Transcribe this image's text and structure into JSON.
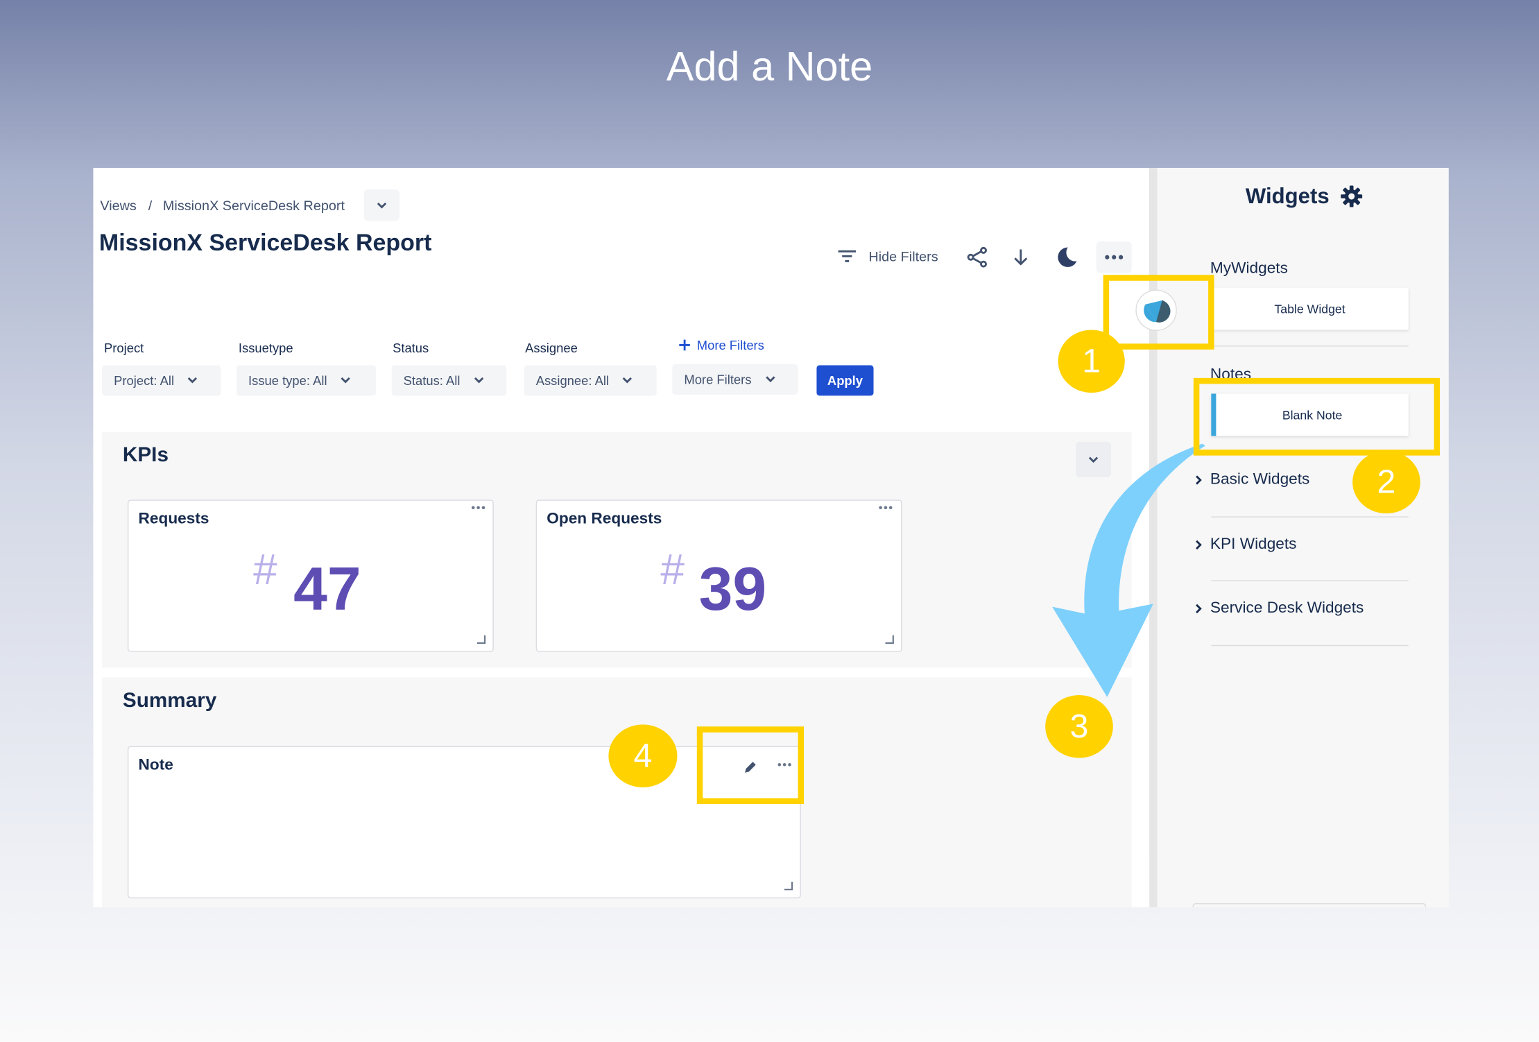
{
  "hero_title": "Add a Note",
  "breadcrumb": {
    "root": "Views",
    "separator": "/",
    "current": "MissionX ServiceDesk Report"
  },
  "page_title": "MissionX ServiceDesk Report",
  "toolbar": {
    "hide_filters": "Hide Filters"
  },
  "filters": {
    "labels": [
      "Project",
      "Issuetype",
      "Status",
      "Assignee"
    ],
    "selects": [
      "Project: All",
      "Issue type: All",
      "Status: All",
      "Assignee: All",
      "More Filters"
    ],
    "more_filters_link": "More Filters",
    "apply": "Apply"
  },
  "sections": {
    "kpis": {
      "title": "KPIs",
      "cards": [
        {
          "title": "Requests",
          "hash": "#",
          "value": "47"
        },
        {
          "title": "Open Requests",
          "hash": "#",
          "value": "39"
        }
      ]
    },
    "summary": {
      "title": "Summary",
      "note_title": "Note"
    }
  },
  "sidebar": {
    "title": "Widgets",
    "mywidgets_heading": "MyWidgets",
    "table_widget": "Table Widget",
    "notes_heading": "Notes",
    "blank_note": "Blank Note",
    "categories": [
      "Basic Widgets",
      "KPI Widgets",
      "Service Desk Widgets"
    ]
  },
  "steps": [
    "1",
    "2",
    "3",
    "4"
  ],
  "colors": {
    "accent": "#1f4fd1",
    "highlight": "#ffd200",
    "arrow": "#7dd0fc",
    "kpi_value": "#5e4db2"
  }
}
